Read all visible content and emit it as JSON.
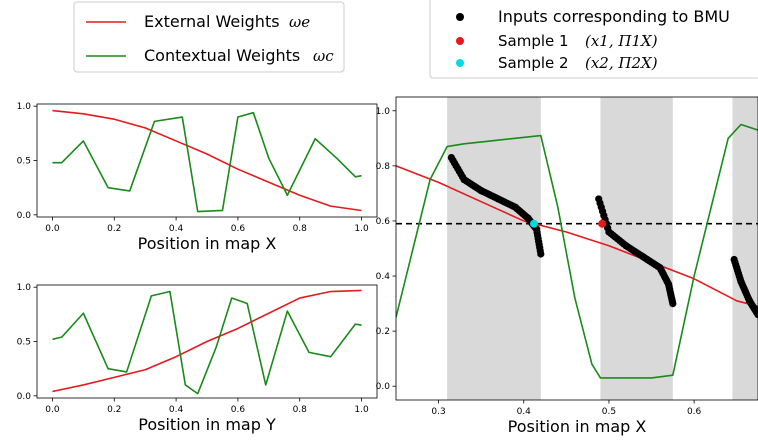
{
  "colors": {
    "external": "#e41a1c",
    "contextual": "#1a8a1a",
    "band": "#d9d9d9",
    "bmu": "#000000",
    "sample1": "#e41a1c",
    "sample2": "#00dcdc"
  },
  "legend_left": {
    "entries": [
      {
        "label": "External Weights",
        "math": "ωe"
      },
      {
        "label": "Contextual Weights",
        "math": "ωc"
      }
    ]
  },
  "legend_right": {
    "entries": [
      {
        "label": "Inputs corresponding to BMU",
        "math": ""
      },
      {
        "label": "Sample 1",
        "math": "(x1, Π1X)"
      },
      {
        "label": "Sample 2",
        "math": "(x2, Π2X)"
      }
    ]
  },
  "chart_data": [
    {
      "type": "line",
      "xlabel": "Position in map X",
      "xlim": [
        -0.05,
        1.05
      ],
      "ylim": [
        -0.02,
        1.02
      ],
      "xticks": [
        0.0,
        0.2,
        0.4,
        0.6,
        0.8,
        1.0
      ],
      "xticklabels": [
        "0.0",
        "0.2",
        "0.4",
        "0.6",
        "0.8",
        "1.0"
      ],
      "yticks": [
        0.0,
        0.5,
        1.0
      ],
      "yticklabels": [
        "0.0",
        "0.5",
        "1.0"
      ],
      "series": [
        {
          "key": "external",
          "x": [
            0.0,
            0.1,
            0.2,
            0.3,
            0.4,
            0.5,
            0.6,
            0.7,
            0.8,
            0.9,
            1.0
          ],
          "y": [
            0.96,
            0.93,
            0.88,
            0.8,
            0.68,
            0.56,
            0.42,
            0.3,
            0.18,
            0.08,
            0.04
          ]
        },
        {
          "key": "contextual",
          "x": [
            0.0,
            0.03,
            0.1,
            0.18,
            0.25,
            0.33,
            0.42,
            0.47,
            0.55,
            0.6,
            0.65,
            0.7,
            0.76,
            0.85,
            0.92,
            0.98,
            1.0
          ],
          "y": [
            0.48,
            0.48,
            0.68,
            0.25,
            0.22,
            0.86,
            0.9,
            0.03,
            0.04,
            0.9,
            0.94,
            0.52,
            0.18,
            0.7,
            0.52,
            0.35,
            0.36
          ]
        }
      ]
    },
    {
      "type": "line",
      "xlabel": "Position in map Y",
      "xlim": [
        -0.05,
        1.05
      ],
      "ylim": [
        -0.02,
        1.02
      ],
      "xticks": [
        0.0,
        0.2,
        0.4,
        0.6,
        0.8,
        1.0
      ],
      "xticklabels": [
        "0.0",
        "0.2",
        "0.4",
        "0.6",
        "0.8",
        "1.0"
      ],
      "yticks": [
        0.0,
        0.5,
        1.0
      ],
      "yticklabels": [
        "0.0",
        "0.5",
        "1.0"
      ],
      "series": [
        {
          "key": "external",
          "x": [
            0.0,
            0.1,
            0.2,
            0.3,
            0.4,
            0.5,
            0.6,
            0.7,
            0.8,
            0.9,
            1.0
          ],
          "y": [
            0.04,
            0.1,
            0.17,
            0.24,
            0.36,
            0.5,
            0.62,
            0.76,
            0.9,
            0.96,
            0.97
          ]
        },
        {
          "key": "contextual",
          "x": [
            0.0,
            0.03,
            0.1,
            0.18,
            0.24,
            0.32,
            0.38,
            0.43,
            0.47,
            0.53,
            0.58,
            0.63,
            0.69,
            0.76,
            0.83,
            0.9,
            0.98,
            1.0
          ],
          "y": [
            0.52,
            0.54,
            0.76,
            0.25,
            0.22,
            0.92,
            0.96,
            0.1,
            0.02,
            0.45,
            0.9,
            0.85,
            0.1,
            0.78,
            0.4,
            0.36,
            0.66,
            0.65
          ]
        }
      ]
    },
    {
      "type": "line",
      "xlabel": "Position in map X",
      "xlim": [
        0.25,
        0.675
      ],
      "ylim": [
        -0.05,
        1.05
      ],
      "xticks": [
        0.3,
        0.4,
        0.5,
        0.6
      ],
      "xticklabels": [
        "0.3",
        "0.4",
        "0.5",
        "0.6"
      ],
      "yticks": [
        0.0,
        0.2,
        0.4,
        0.6,
        0.8,
        1.0
      ],
      "yticklabels": [
        "0.0",
        "0.2",
        "0.4",
        "0.6",
        "0.8",
        "1.0"
      ],
      "shaded_bands": [
        [
          0.31,
          0.42
        ],
        [
          0.49,
          0.575
        ],
        [
          0.645,
          0.675
        ]
      ],
      "hline": 0.59,
      "series": [
        {
          "key": "external",
          "x": [
            0.25,
            0.3,
            0.35,
            0.4,
            0.45,
            0.5,
            0.55,
            0.6,
            0.65,
            0.675
          ],
          "y": [
            0.8,
            0.74,
            0.67,
            0.6,
            0.56,
            0.51,
            0.45,
            0.39,
            0.31,
            0.29
          ]
        },
        {
          "key": "contextual",
          "x": [
            0.25,
            0.27,
            0.29,
            0.31,
            0.33,
            0.36,
            0.39,
            0.42,
            0.44,
            0.46,
            0.48,
            0.49,
            0.55,
            0.575,
            0.6,
            0.64,
            0.655,
            0.675
          ],
          "y": [
            0.25,
            0.5,
            0.75,
            0.87,
            0.88,
            0.89,
            0.9,
            0.91,
            0.65,
            0.32,
            0.08,
            0.03,
            0.03,
            0.04,
            0.4,
            0.9,
            0.95,
            0.93
          ]
        },
        {
          "key": "bmu",
          "x": [
            0.315,
            0.33,
            0.35,
            0.37,
            0.39,
            0.405,
            0.415,
            0.42,
            0.488,
            0.5,
            0.52,
            0.54,
            0.56,
            0.57,
            0.575,
            0.647,
            0.655,
            0.665,
            0.675
          ],
          "y": [
            0.83,
            0.75,
            0.71,
            0.68,
            0.65,
            0.61,
            0.57,
            0.48,
            0.68,
            0.56,
            0.51,
            0.47,
            0.43,
            0.37,
            0.3,
            0.46,
            0.38,
            0.31,
            0.26
          ],
          "segments": [
            [
              0,
              7
            ],
            [
              8,
              14
            ],
            [
              15,
              18
            ]
          ]
        },
        {
          "key": "sample1",
          "x": [
            0.492
          ],
          "y": [
            0.59
          ]
        },
        {
          "key": "sample2",
          "x": [
            0.412
          ],
          "y": [
            0.59
          ]
        }
      ]
    }
  ]
}
